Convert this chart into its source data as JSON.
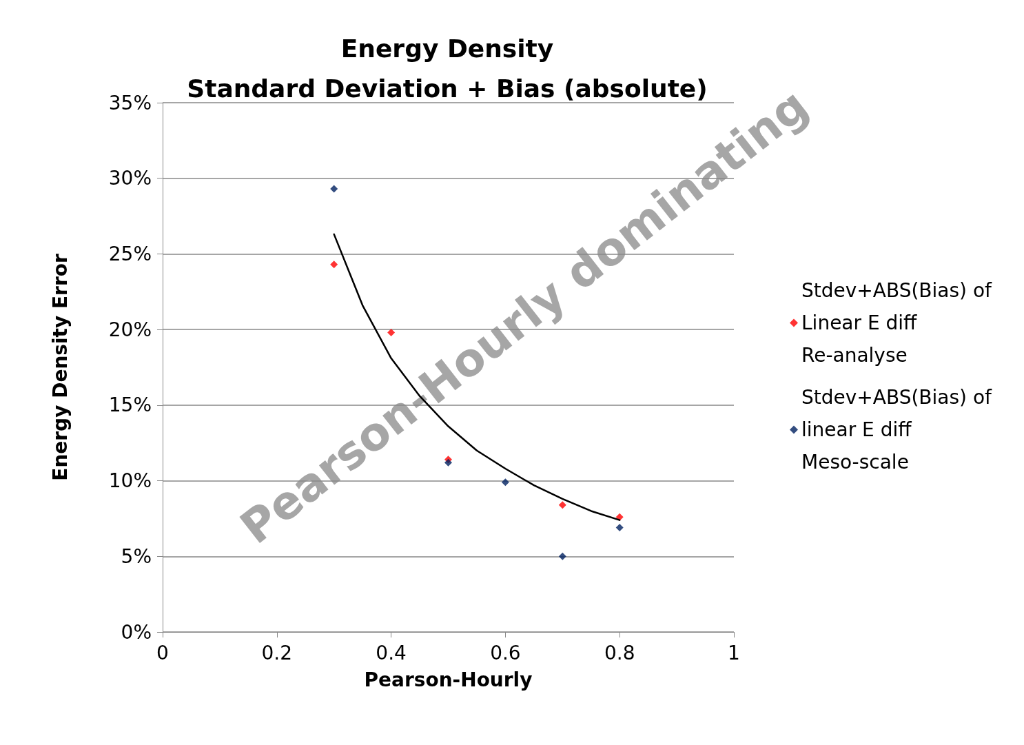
{
  "chart_data": {
    "type": "scatter",
    "title": "Energy Density\nStandard Deviation + Bias (absolute)",
    "xlabel": "Pearson-Hourly",
    "ylabel": "Energy Density Error",
    "annotations": [
      "Pearson-Hourly dominating"
    ],
    "series": [
      {
        "name": "Stdev+ABS(Bias) of Linear E diff Re-analyse",
        "color": "#ff0000",
        "x": [
          0.3,
          0.4,
          0.5,
          0.7,
          0.8
        ],
        "values": [
          24.3,
          19.8,
          11.4,
          8.4,
          7.6
        ]
      },
      {
        "name": "Stdev+ABS(Bias) of linear E diff Meso-scale",
        "color": "#002060",
        "x": [
          0.3,
          0.5,
          0.6,
          0.7,
          0.8
        ],
        "values": [
          29.3,
          11.2,
          9.9,
          5.0,
          6.9
        ]
      },
      {
        "type": "line",
        "color": "#000000",
        "marker": "none",
        "x": [
          0.3,
          0.35,
          0.4,
          0.45,
          0.5,
          0.55,
          0.6,
          0.65,
          0.7,
          0.75,
          0.8
        ],
        "values": [
          26.3,
          21.6,
          18.1,
          15.6,
          13.6,
          12.0,
          10.8,
          9.7,
          8.8,
          8.0,
          7.4
        ]
      }
    ],
    "xlim": [
      0,
      1
    ],
    "xticks": [
      0,
      0.2,
      0.4,
      0.6,
      0.8,
      1
    ],
    "ylim": [
      0,
      35
    ],
    "yticks": [
      {
        "value": 0,
        "label": "0%"
      },
      {
        "value": 5,
        "label": "5%"
      },
      {
        "value": 10,
        "label": "10%"
      },
      {
        "value": 15,
        "label": "15%"
      },
      {
        "value": 20,
        "label": "20%"
      },
      {
        "value": 25,
        "label": "25%"
      },
      {
        "value": 30,
        "label": "30%"
      },
      {
        "value": 35,
        "label": "35%"
      }
    ],
    "grid": "y",
    "legend": "right",
    "marker": "diamond"
  }
}
